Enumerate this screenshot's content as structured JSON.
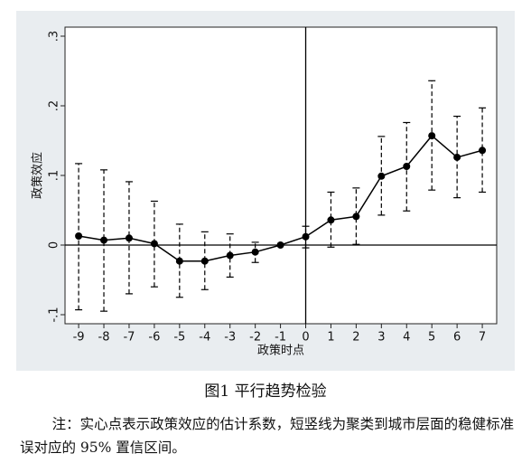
{
  "chart_data": {
    "type": "line",
    "ylabel": "政策效应",
    "xlabel": "政策时点",
    "caption": "图1  平行趋势检验",
    "note": "注：实心点表示政策效应的估计系数，短竖线为聚类到城市层面的稳健标准误对应的 95% 置信区间。",
    "x": [
      -9,
      -8,
      -7,
      -6,
      -5,
      -4,
      -3,
      -2,
      -1,
      0,
      1,
      2,
      3,
      4,
      5,
      6,
      7
    ],
    "series": [
      {
        "color": "#000000",
        "values": [
          0.013,
          0.007,
          0.01,
          0.002,
          -0.023,
          -0.023,
          -0.015,
          -0.01,
          0,
          0.012,
          0.036,
          0.041,
          0.099,
          0.113,
          0.157,
          0.126,
          0.136
        ],
        "lower": [
          -0.093,
          -0.095,
          -0.07,
          -0.06,
          -0.075,
          -0.064,
          -0.046,
          -0.025,
          null,
          -0.004,
          -0.003,
          0.001,
          0.043,
          0.049,
          0.079,
          0.068,
          0.076
        ],
        "upper": [
          0.117,
          0.108,
          0.091,
          0.063,
          0.03,
          0.019,
          0.016,
          0.004,
          null,
          0.027,
          0.076,
          0.082,
          0.156,
          0.176,
          0.236,
          0.185,
          0.197
        ]
      }
    ],
    "xlim": [
      -9.54,
      7.57
    ],
    "ylim": [
      -0.113,
      0.313
    ],
    "xticks": [
      -9,
      -8,
      -7,
      -6,
      -5,
      -4,
      -3,
      -2,
      -1,
      0,
      1,
      2,
      3,
      4,
      5,
      6,
      7
    ],
    "yticks": [
      {
        "value": -0.1,
        "label": "-.1"
      },
      0,
      {
        "value": 0.1,
        "label": ".1"
      },
      {
        "value": 0.2,
        "label": ".2"
      },
      {
        "value": 0.3,
        "label": ".3"
      }
    ],
    "hline": 0,
    "vline": 0
  }
}
